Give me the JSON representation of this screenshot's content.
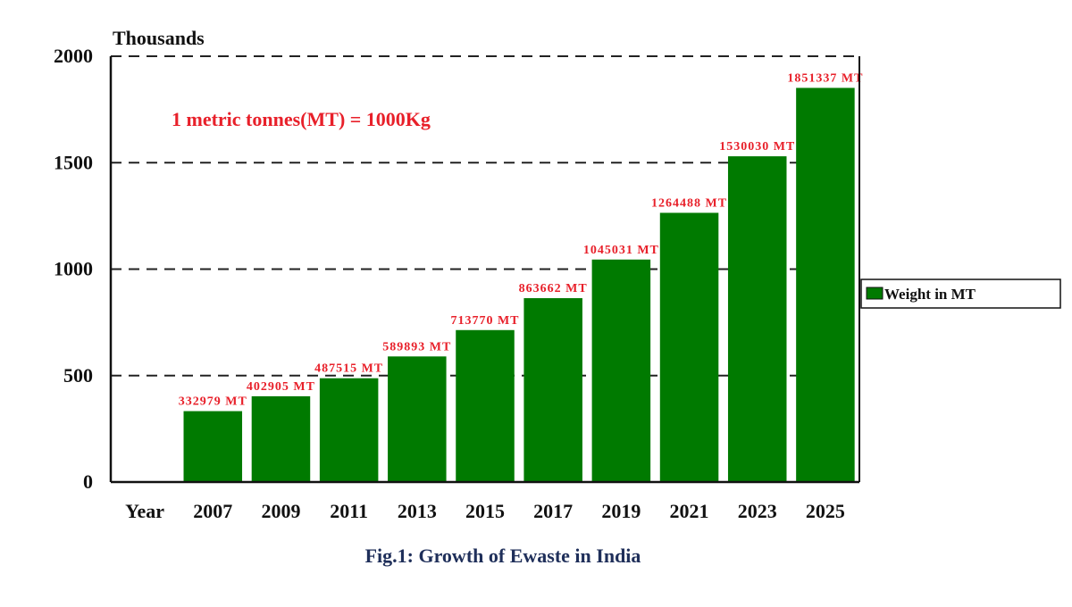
{
  "chart_data": {
    "type": "bar",
    "unit_label": "Thousands",
    "note": "1 metric tonnes(MT) = 1000Kg",
    "caption": "Fig.1: Growth of Ewaste in India",
    "x_axis_first_label": "Year",
    "categories": [
      "2007",
      "2009",
      "2011",
      "2013",
      "2015",
      "2017",
      "2019",
      "2021",
      "2023",
      "2025"
    ],
    "series": [
      {
        "name": "Weight in MT",
        "values": [
          332979,
          402905,
          487515,
          589893,
          713770,
          863662,
          1045031,
          1264488,
          1530030,
          1851337
        ],
        "data_labels": [
          "332979 MT",
          "402905 MT",
          "487515 MT",
          "589893 MT",
          "713770 MT",
          "863662 MT",
          "1045031 MT",
          "1264488 MT",
          "1530030 MT",
          "1851337 MT"
        ]
      }
    ],
    "ylim": [
      0,
      2000
    ],
    "yticks": [
      0,
      500,
      1000,
      1500,
      2000
    ],
    "y_scale_divisor": 1000,
    "grid": "dashed horizontal",
    "legend_position": "right",
    "colors": {
      "bar": "#007a00",
      "data_label": "#e8202a",
      "note": "#e8202a",
      "caption": "#1f2f5a"
    }
  }
}
